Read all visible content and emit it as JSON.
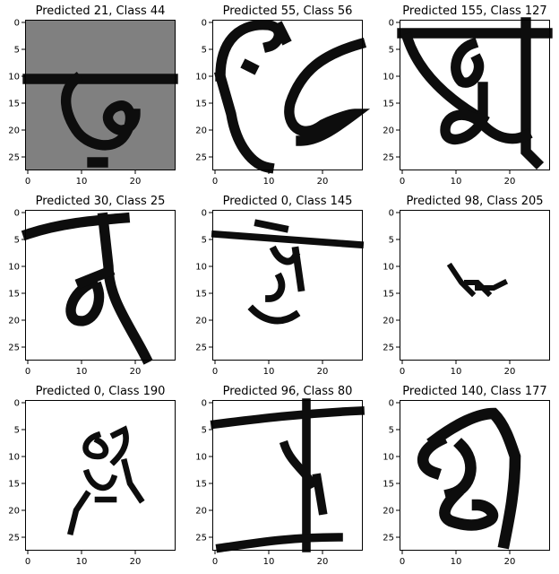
{
  "chart_data": [
    {
      "type": "image",
      "title": "Predicted 21, Class 44",
      "predicted": 21,
      "class": 44,
      "background": "gray",
      "xlim": [
        0,
        27
      ],
      "ylim": [
        27,
        0
      ],
      "xticks": [
        "0",
        "10",
        "20"
      ],
      "yticks": [
        "0",
        "5",
        "10",
        "15",
        "20",
        "25"
      ]
    },
    {
      "type": "image",
      "title": "Predicted 55, Class 56",
      "predicted": 55,
      "class": 56,
      "background": "white",
      "xlim": [
        0,
        27
      ],
      "ylim": [
        27,
        0
      ],
      "xticks": [
        "0",
        "10",
        "20"
      ],
      "yticks": [
        "0",
        "5",
        "10",
        "15",
        "20",
        "25"
      ]
    },
    {
      "type": "image",
      "title": "Predicted 155, Class 127",
      "predicted": 155,
      "class": 127,
      "background": "white",
      "xlim": [
        0,
        27
      ],
      "ylim": [
        27,
        0
      ],
      "xticks": [
        "0",
        "10",
        "20"
      ],
      "yticks": [
        "0",
        "5",
        "10",
        "15",
        "20",
        "25"
      ]
    },
    {
      "type": "image",
      "title": "Predicted 30, Class 25",
      "predicted": 30,
      "class": 25,
      "background": "white",
      "xlim": [
        0,
        27
      ],
      "ylim": [
        27,
        0
      ],
      "xticks": [
        "0",
        "10",
        "20"
      ],
      "yticks": [
        "0",
        "5",
        "10",
        "15",
        "20",
        "25"
      ]
    },
    {
      "type": "image",
      "title": "Predicted 0, Class 145",
      "predicted": 0,
      "class": 145,
      "background": "white",
      "xlim": [
        0,
        27
      ],
      "ylim": [
        27,
        0
      ],
      "xticks": [
        "0",
        "10",
        "20"
      ],
      "yticks": [
        "0",
        "5",
        "10",
        "15",
        "20",
        "25"
      ]
    },
    {
      "type": "image",
      "title": "Predicted 98, Class 205",
      "predicted": 98,
      "class": 205,
      "background": "white",
      "xlim": [
        0,
        27
      ],
      "ylim": [
        27,
        0
      ],
      "xticks": [
        "0",
        "10",
        "20"
      ],
      "yticks": [
        "0",
        "5",
        "10",
        "15",
        "20",
        "25"
      ]
    },
    {
      "type": "image",
      "title": "Predicted 0, Class 190",
      "predicted": 0,
      "class": 190,
      "background": "white",
      "xlim": [
        0,
        27
      ],
      "ylim": [
        27,
        0
      ],
      "xticks": [
        "0",
        "10",
        "20"
      ],
      "yticks": [
        "0",
        "5",
        "10",
        "15",
        "20",
        "25"
      ]
    },
    {
      "type": "image",
      "title": "Predicted 96, Class 80",
      "predicted": 96,
      "class": 80,
      "background": "white",
      "xlim": [
        0,
        27
      ],
      "ylim": [
        27,
        0
      ],
      "xticks": [
        "0",
        "10",
        "20"
      ],
      "yticks": [
        "0",
        "5",
        "10",
        "15",
        "20",
        "25"
      ]
    },
    {
      "type": "image",
      "title": "Predicted 140, Class 177",
      "predicted": 140,
      "class": 177,
      "background": "white",
      "xlim": [
        0,
        27
      ],
      "ylim": [
        27,
        0
      ],
      "xticks": [
        "0",
        "10",
        "20"
      ],
      "yticks": [
        "0",
        "5",
        "10",
        "15",
        "20",
        "25"
      ]
    }
  ]
}
